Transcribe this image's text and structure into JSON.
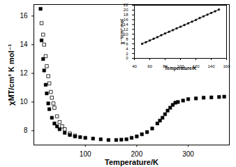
{
  "chart_data": [
    {
      "type": "scatter",
      "x_label": "Temperature/K",
      "y_label": "χMT/cm³ K mol⁻¹",
      "xlim": [
        0,
        380
      ],
      "xticks": [
        100,
        200,
        300
      ],
      "ylim": [
        7,
        16.8
      ],
      "yticks": [
        8,
        10,
        12,
        14,
        16
      ],
      "series": [
        {
          "color": "#000000",
          "marker": "square",
          "x": [
            13,
            15,
            18,
            20,
            23,
            25,
            28,
            30,
            35,
            40,
            45,
            50,
            60,
            70,
            80,
            90,
            100,
            115,
            130,
            145,
            160,
            170,
            180,
            190,
            200,
            210,
            220,
            230,
            240,
            245,
            250,
            255,
            260,
            265,
            270,
            275,
            280,
            290,
            300,
            315,
            330,
            345,
            360,
            370
          ],
          "values": [
            16.5,
            14.3,
            13.0,
            12.2,
            11.2,
            10.6,
            9.9,
            9.5,
            8.9,
            8.5,
            8.3,
            8.1,
            7.85,
            7.7,
            7.6,
            7.55,
            7.5,
            7.45,
            7.4,
            7.35,
            7.35,
            7.37,
            7.4,
            7.5,
            7.6,
            7.75,
            7.9,
            8.15,
            8.5,
            8.7,
            8.9,
            9.15,
            9.4,
            9.6,
            9.8,
            9.95,
            10.0,
            10.1,
            10.2,
            10.25,
            10.3,
            10.32,
            10.35,
            10.37
          ]
        },
        {
          "color": "#000000",
          "marker": "square-open",
          "x": [
            15,
            18,
            20,
            23,
            25,
            28,
            30,
            33,
            35,
            38,
            40,
            45,
            50,
            55,
            60,
            70,
            80
          ],
          "values": [
            15.5,
            14.7,
            14.0,
            13.2,
            12.5,
            11.8,
            11.3,
            10.7,
            10.3,
            9.9,
            9.6,
            9.0,
            8.6,
            8.3,
            8.1,
            7.8,
            7.65
          ]
        }
      ]
    },
    {
      "type": "line",
      "x_label": "Temperature/K",
      "y_label": "χ⁻¹/cm³ mol",
      "xlim": [
        40,
        160
      ],
      "xticks": [
        40,
        60,
        80,
        100,
        120,
        140,
        160
      ],
      "ylim": [
        0,
        22
      ],
      "yticks": [
        0,
        2,
        4,
        6,
        8,
        10,
        12,
        14,
        16,
        18,
        20,
        22
      ],
      "series": [
        {
          "color": "#000000",
          "marker": "square",
          "x": [
            50,
            55,
            60,
            65,
            70,
            75,
            80,
            85,
            90,
            95,
            100,
            105,
            110,
            115,
            120,
            125,
            130,
            135,
            140,
            145,
            150
          ],
          "values": [
            6.0,
            6.7,
            7.4,
            8.1,
            8.8,
            9.6,
            10.3,
            11.0,
            11.7,
            12.4,
            13.1,
            13.8,
            14.5,
            15.2,
            15.9,
            16.7,
            17.4,
            18.1,
            18.8,
            19.5,
            20.2
          ]
        }
      ]
    }
  ]
}
